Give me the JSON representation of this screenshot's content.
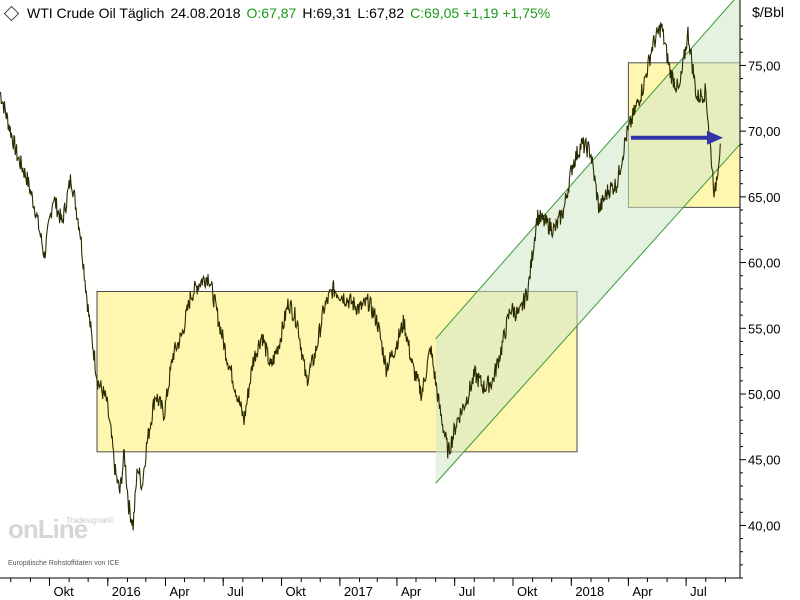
{
  "header": {
    "instrument": "WTI Crude Oil Täglich",
    "date": "24.08.2018",
    "open": "O:67,87",
    "high": "H:69,31",
    "low": "L:67,82",
    "close_change": "C:69,05 +1,19 +1,75%"
  },
  "unit": "$/Bbl",
  "logo": {
    "brand": "onLine",
    "sub": "Tradesignal®"
  },
  "source": "Europäische Rohstoffdaten von ICE",
  "colors": {
    "price": "#2b2b00",
    "box": "#fff7b0",
    "box_border": "#4a4a4a",
    "channel_fill": "#cfe8c6",
    "channel_line": "#3a9a3a",
    "arrow": "#3333aa",
    "axis": "#000000",
    "positive": "#1a9a1a"
  },
  "chart_data": {
    "type": "line",
    "title": "WTI Crude Oil Täglich",
    "ylabel": "$/Bbl",
    "ylim": [
      36,
      78
    ],
    "y_ticks": [
      "40,00",
      "45,00",
      "50,00",
      "55,00",
      "60,00",
      "65,00",
      "70,00",
      "75,00"
    ],
    "y_tick_values": [
      40,
      45,
      50,
      55,
      60,
      65,
      70,
      75
    ],
    "x_ticks": [
      "Okt",
      "2016",
      "Apr",
      "Jul",
      "Okt",
      "2017",
      "Apr",
      "Jul",
      "Okt",
      "2018",
      "Apr",
      "Jul"
    ],
    "x_tick_dates": [
      "2015-10-01",
      "2016-01-01",
      "2016-04-01",
      "2016-07-01",
      "2016-10-01",
      "2017-01-01",
      "2017-04-01",
      "2017-07-01",
      "2017-10-01",
      "2018-01-01",
      "2018-04-01",
      "2018-07-01"
    ],
    "x_range": [
      "2015-07-15",
      "2018-09-24"
    ],
    "grid": false,
    "series": [
      {
        "values_approx_weekly": [
          [
            "2015-07-15",
            73.0
          ],
          [
            "2015-07-29",
            70.5
          ],
          [
            "2015-08-12",
            68.0
          ],
          [
            "2015-08-26",
            66.5
          ],
          [
            "2015-09-09",
            64.0
          ],
          [
            "2015-09-23",
            60.5
          ],
          [
            "2015-10-07",
            65.0
          ],
          [
            "2015-10-21",
            63.0
          ],
          [
            "2015-11-04",
            66.5
          ],
          [
            "2015-11-18",
            62.5
          ],
          [
            "2015-12-02",
            56.0
          ],
          [
            "2015-12-16",
            51.0
          ],
          [
            "2015-12-30",
            49.5
          ],
          [
            "2016-01-06",
            47.0
          ],
          [
            "2016-01-13",
            44.0
          ],
          [
            "2016-01-20",
            42.5
          ],
          [
            "2016-01-27",
            45.5
          ],
          [
            "2016-02-03",
            41.5
          ],
          [
            "2016-02-10",
            40.0
          ],
          [
            "2016-02-17",
            44.5
          ],
          [
            "2016-02-24",
            43.0
          ],
          [
            "2016-03-02",
            46.0
          ],
          [
            "2016-03-16",
            50.0
          ],
          [
            "2016-03-30",
            48.5
          ],
          [
            "2016-04-13",
            53.0
          ],
          [
            "2016-04-27",
            54.5
          ],
          [
            "2016-05-11",
            57.5
          ],
          [
            "2016-05-25",
            58.5
          ],
          [
            "2016-06-08",
            59.0
          ],
          [
            "2016-06-22",
            56.0
          ],
          [
            "2016-07-06",
            53.0
          ],
          [
            "2016-07-20",
            50.5
          ],
          [
            "2016-08-03",
            48.0
          ],
          [
            "2016-08-17",
            52.5
          ],
          [
            "2016-08-31",
            54.5
          ],
          [
            "2016-09-14",
            52.0
          ],
          [
            "2016-09-28",
            54.0
          ],
          [
            "2016-10-12",
            57.0
          ],
          [
            "2016-10-26",
            55.5
          ],
          [
            "2016-11-09",
            51.0
          ],
          [
            "2016-11-23",
            53.0
          ],
          [
            "2016-12-07",
            56.5
          ],
          [
            "2016-12-21",
            58.0
          ],
          [
            "2017-01-04",
            57.5
          ],
          [
            "2017-01-18",
            57.0
          ],
          [
            "2017-02-01",
            56.5
          ],
          [
            "2017-02-15",
            57.0
          ],
          [
            "2017-03-01",
            55.5
          ],
          [
            "2017-03-15",
            52.0
          ],
          [
            "2017-03-29",
            53.5
          ],
          [
            "2017-04-12",
            55.5
          ],
          [
            "2017-04-26",
            52.0
          ],
          [
            "2017-05-10",
            50.0
          ],
          [
            "2017-05-24",
            53.5
          ],
          [
            "2017-06-07",
            49.0
          ],
          [
            "2017-06-21",
            45.5
          ],
          [
            "2017-07-05",
            48.0
          ],
          [
            "2017-07-19",
            49.5
          ],
          [
            "2017-08-02",
            51.5
          ],
          [
            "2017-08-16",
            50.5
          ],
          [
            "2017-08-30",
            51.0
          ],
          [
            "2017-09-13",
            53.5
          ],
          [
            "2017-09-27",
            56.5
          ],
          [
            "2017-10-11",
            56.0
          ],
          [
            "2017-10-25",
            58.0
          ],
          [
            "2017-11-08",
            63.5
          ],
          [
            "2017-11-22",
            63.0
          ],
          [
            "2017-12-06",
            62.5
          ],
          [
            "2017-12-20",
            64.0
          ],
          [
            "2018-01-03",
            67.5
          ],
          [
            "2018-01-17",
            69.0
          ],
          [
            "2018-01-31",
            68.5
          ],
          [
            "2018-02-14",
            64.0
          ],
          [
            "2018-02-28",
            65.5
          ],
          [
            "2018-03-14",
            66.0
          ],
          [
            "2018-03-28",
            69.5
          ],
          [
            "2018-04-11",
            71.5
          ],
          [
            "2018-04-25",
            73.5
          ],
          [
            "2018-05-09",
            76.5
          ],
          [
            "2018-05-23",
            78.0
          ],
          [
            "2018-06-06",
            74.5
          ],
          [
            "2018-06-20",
            73.0
          ],
          [
            "2018-07-04",
            77.5
          ],
          [
            "2018-07-18",
            72.5
          ],
          [
            "2018-08-01",
            73.0
          ],
          [
            "2018-08-15",
            65.0
          ],
          [
            "2018-08-24",
            69.05
          ]
        ]
      }
    ],
    "annotations": {
      "sideways_box": {
        "from": "2015-12-15",
        "to": "2018-01-10",
        "low": 45.6,
        "high": 57.8
      },
      "top_box": {
        "from": "2018-04-01",
        "to": "2018-09-24",
        "low": 64.2,
        "high": 75.2
      },
      "channel": {
        "upper": [
          [
            "2017-06-01",
            54.2
          ],
          [
            "2018-09-24",
            80.5
          ]
        ],
        "lower": [
          [
            "2017-06-01",
            43.2
          ],
          [
            "2018-09-24",
            69.0
          ]
        ]
      },
      "arrow": {
        "from": "2018-04-05",
        "to": "2018-08-25",
        "value": 69.5
      }
    }
  }
}
